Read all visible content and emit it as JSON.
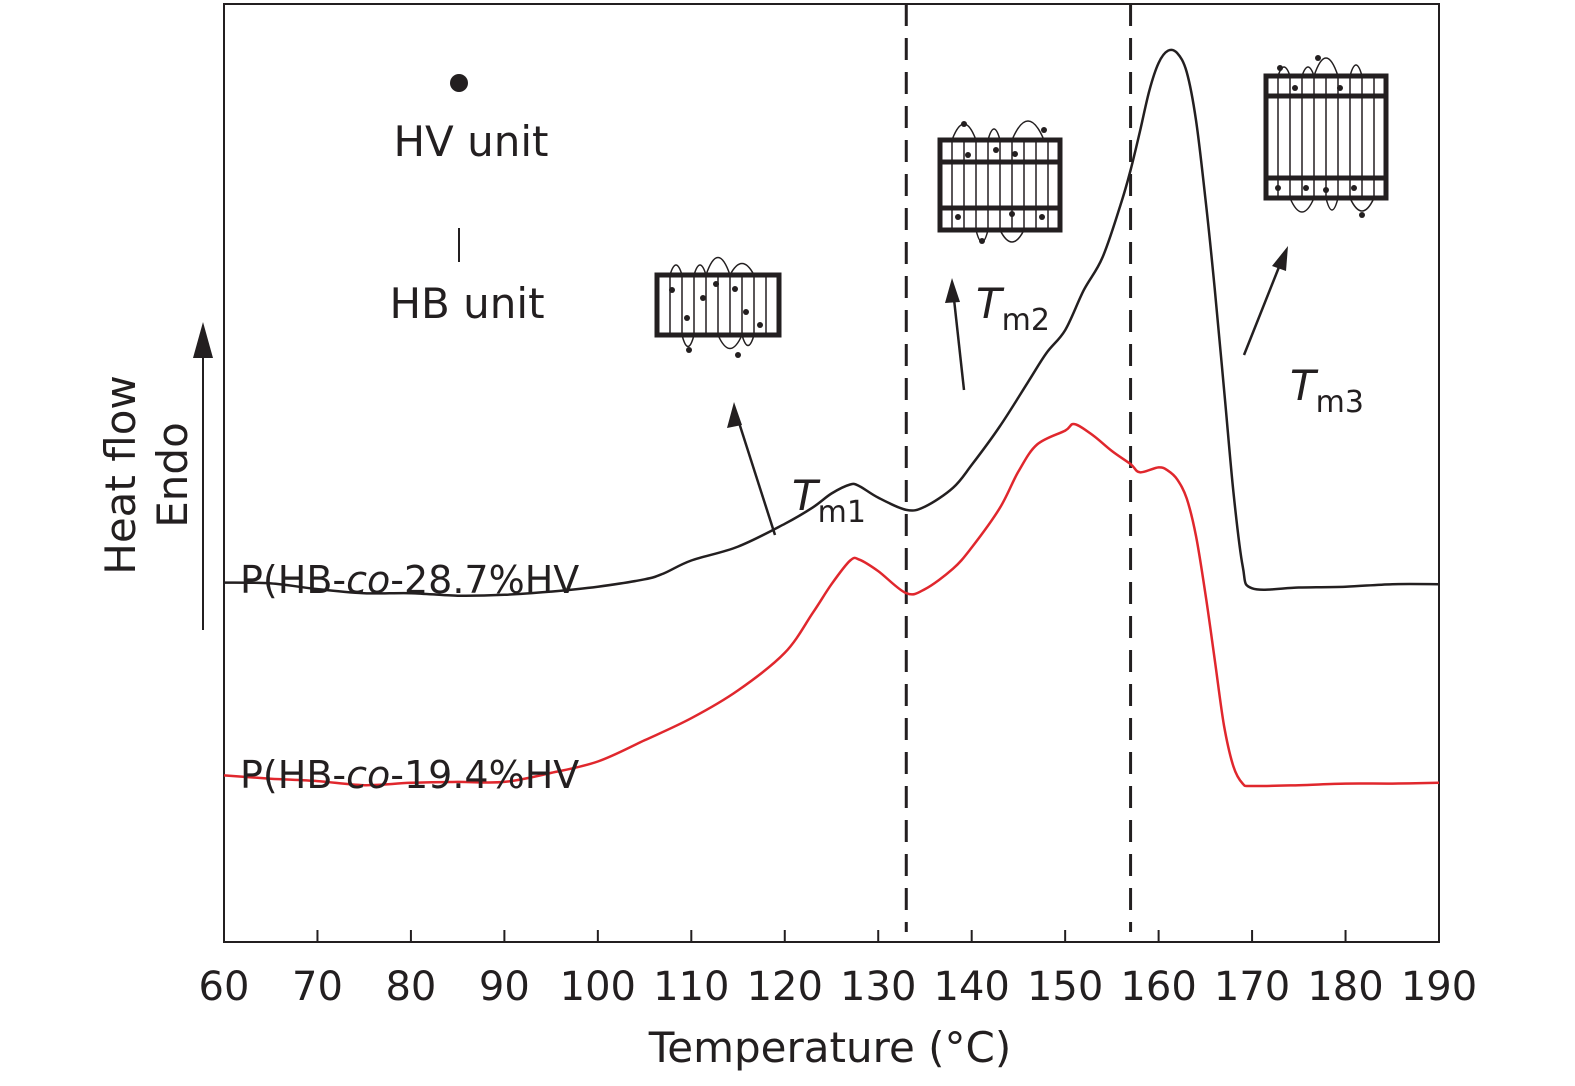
{
  "chart_data": {
    "type": "line",
    "xlabel": "Temperature (°C)",
    "ylabel_line1": "Heat flow",
    "ylabel_line2": "Endo",
    "xlim": [
      60,
      190
    ],
    "ylim": [
      0,
      100
    ],
    "xticks": [
      60,
      70,
      80,
      90,
      100,
      110,
      120,
      130,
      140,
      150,
      160,
      170,
      180,
      190
    ],
    "vlines": [
      133,
      157
    ],
    "colors": {
      "upper": "#231f20",
      "lower": "#e0272d",
      "axis": "#231f20"
    },
    "series": [
      {
        "name_prefix": "P(HB-",
        "name_italic": "co",
        "name_suffix": "-28.7%HV",
        "color": "#231f20",
        "x": [
          60,
          65,
          70,
          75,
          80,
          85,
          90,
          95,
          100,
          105,
          107,
          110,
          115,
          120,
          123,
          125,
          127,
          128,
          130,
          133,
          135,
          138,
          140,
          143,
          146,
          148,
          150,
          152,
          154,
          156,
          157,
          158,
          159,
          160,
          161,
          162,
          163,
          164,
          165,
          166,
          167,
          168,
          169,
          170,
          175,
          180,
          185,
          190
        ],
        "y": [
          34.2,
          34.1,
          33.4,
          32.9,
          32.9,
          32.6,
          32.7,
          33.1,
          33.7,
          34.6,
          35.3,
          36.9,
          38.6,
          41.4,
          43.4,
          45.1,
          46.2,
          46.0,
          44.6,
          43.1,
          43.5,
          45.8,
          48.6,
          53.3,
          58.7,
          62.3,
          65.1,
          70.0,
          74.0,
          80.7,
          84.7,
          89.4,
          94.4,
          97.8,
          99.3,
          99.0,
          96.7,
          90.8,
          81.3,
          70.2,
          57.9,
          45.3,
          36.2,
          33.5,
          33.6,
          33.7,
          34.0,
          34.0
        ]
      },
      {
        "name_prefix": "P(HB-",
        "name_italic": "co",
        "name_suffix": "-19.4%HV",
        "color": "#e0272d",
        "x": [
          60,
          65,
          70,
          75,
          80,
          85,
          90,
          95,
          100,
          105,
          110,
          115,
          120,
          123,
          125,
          127,
          128,
          130,
          133,
          135,
          138,
          140,
          143,
          145,
          147,
          150,
          151,
          153,
          155,
          157,
          158,
          160,
          161,
          162,
          163,
          164,
          165,
          166,
          167,
          168,
          169,
          170,
          175,
          180,
          185,
          190
        ],
        "y": [
          10.6,
          10.2,
          9.9,
          9.4,
          9.7,
          9.8,
          9.8,
          10.9,
          12.3,
          14.9,
          17.6,
          21.0,
          25.6,
          30.5,
          34.0,
          36.9,
          37.0,
          35.6,
          32.9,
          33.4,
          35.9,
          38.5,
          43.3,
          47.8,
          51.1,
          52.8,
          53.6,
          52.2,
          50.3,
          48.7,
          47.7,
          48.3,
          47.9,
          46.8,
          44.5,
          39.9,
          32.9,
          24.8,
          16.7,
          11.7,
          9.6,
          9.3,
          9.4,
          9.6,
          9.6,
          9.7
        ]
      }
    ],
    "annotations": {
      "hv_unit": "HV unit",
      "hb_unit": "HB unit",
      "tm1": {
        "main": "T",
        "sub": "m1"
      },
      "tm2": {
        "main": "T",
        "sub": "m2"
      },
      "tm3": {
        "main": "T",
        "sub": "m3"
      }
    }
  }
}
